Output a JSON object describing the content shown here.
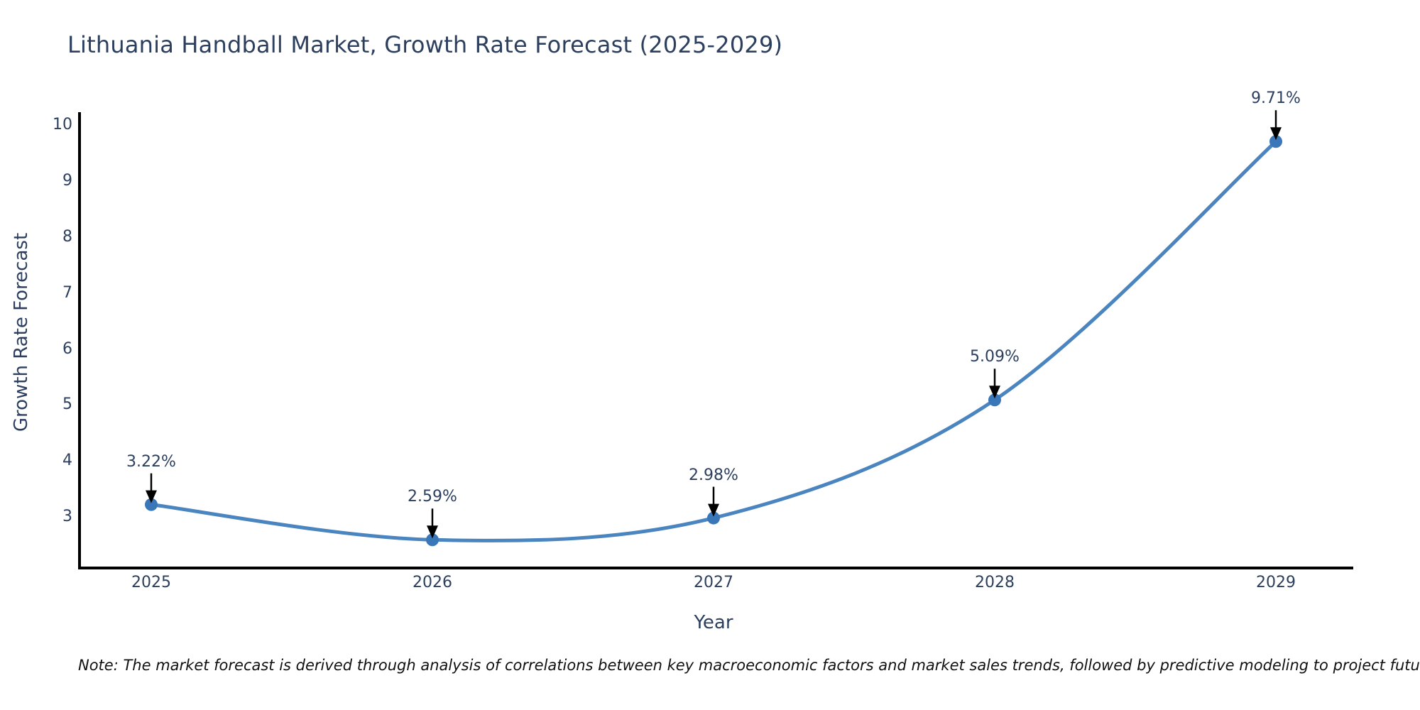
{
  "chart_data": {
    "type": "line",
    "title": "Lithuania Handball Market, Growth Rate Forecast (2025-2029)",
    "xlabel": "Year",
    "ylabel": "Growth Rate Forecast",
    "categories": [
      2025,
      2026,
      2027,
      2028,
      2029
    ],
    "values": [
      3.22,
      2.59,
      2.98,
      5.09,
      9.71
    ],
    "point_labels": [
      "3.22%",
      "2.59%",
      "2.98%",
      "5.09%",
      "9.71%"
    ],
    "yticks": [
      3,
      4,
      5,
      6,
      7,
      8,
      9,
      10
    ],
    "ylim": [
      2.1,
      10.35
    ],
    "line_shape": "spline",
    "grid": false,
    "legend": "none",
    "annotation_style": "value label above point with downward black arrow",
    "note": "Note: The market forecast is derived through analysis of correlations between key macroeconomic factors and market sales trends, followed by predictive modeling to project future sales",
    "colors": {
      "line": "#4a85c0",
      "marker": "#3a77b8",
      "axis": "#000000",
      "arrow": "#000000",
      "text": "#2c3f5e",
      "note_text": "#111111",
      "background": "#ffffff"
    }
  }
}
